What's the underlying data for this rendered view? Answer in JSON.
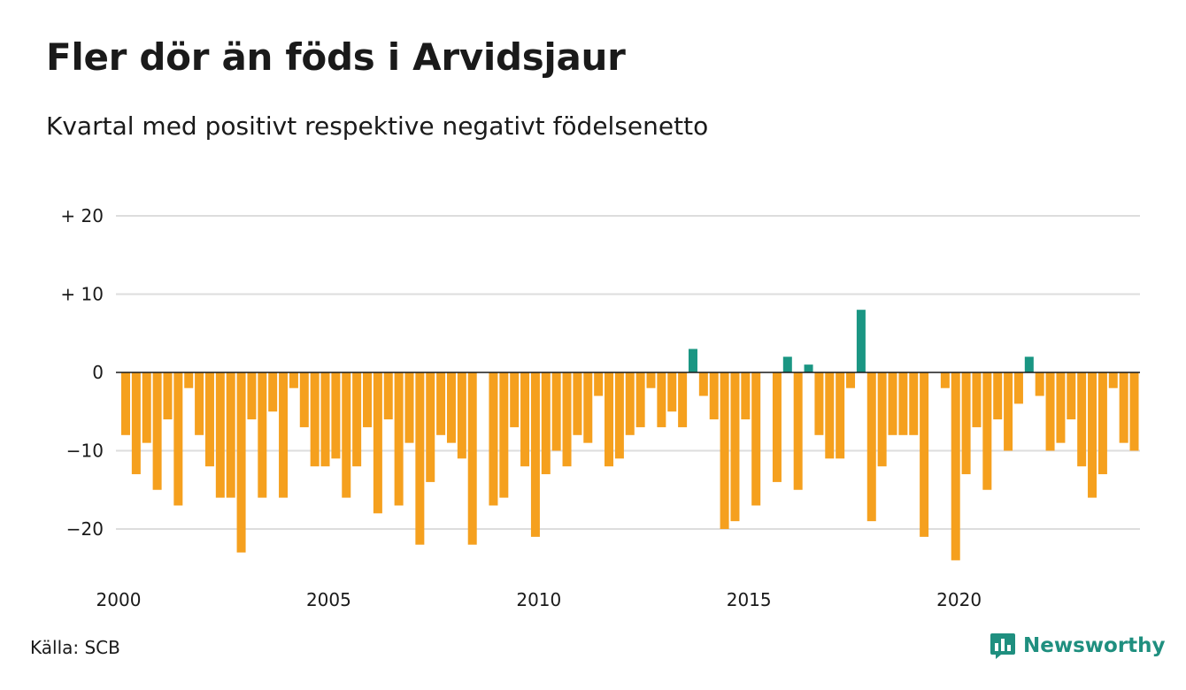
{
  "title": "Fler dör än föds i Arvidsjaur",
  "subtitle": "Kvartal med positivt respektive negativt födelsenetto",
  "source": "Källa: SCB",
  "brand": "Newsworthy",
  "colors": {
    "positive": "#1a9683",
    "negative": "#f5a01e",
    "grid": "#dddddd",
    "baseline": "#1a1a1a",
    "brand": "#1f8f7f"
  },
  "brand_icon": "newsworthy-chart-bubble-icon",
  "chart_data": {
    "type": "bar",
    "title": "Fler dör än föds i Arvidsjaur",
    "subtitle": "Kvartal med positivt respektive negativt födelsenetto",
    "xlabel": "",
    "ylabel": "",
    "x_start": "2000-Q1",
    "x_ticks": [
      "2000",
      "2005",
      "2010",
      "2015",
      "2020"
    ],
    "y_ticks": [
      {
        "value": 20,
        "label": "+ 20"
      },
      {
        "value": 10,
        "label": "+ 10"
      },
      {
        "value": 0,
        "label": "0"
      },
      {
        "value": -10,
        "label": "−10"
      },
      {
        "value": -20,
        "label": "−20"
      }
    ],
    "ylim": [
      -25,
      20
    ],
    "grid": true,
    "values": [
      -8,
      -13,
      -9,
      -15,
      -6,
      -17,
      -2,
      -8,
      -12,
      -16,
      -16,
      -23,
      -6,
      -16,
      -5,
      -16,
      -2,
      -7,
      -12,
      -12,
      -11,
      -16,
      -12,
      -7,
      -18,
      -6,
      -17,
      -9,
      -22,
      -14,
      -8,
      -9,
      -11,
      -22,
      0,
      -17,
      -16,
      -7,
      -12,
      -21,
      -13,
      -10,
      -12,
      -8,
      -9,
      -3,
      -12,
      -11,
      -8,
      -7,
      -2,
      -7,
      -5,
      -7,
      3,
      -3,
      -6,
      -20,
      -19,
      -6,
      -17,
      0,
      -14,
      2,
      -15,
      1,
      -8,
      -11,
      -11,
      -2,
      8,
      -19,
      -12,
      -8,
      -8,
      -8,
      -21,
      0,
      -2,
      -24,
      -13,
      -7,
      -15,
      -6,
      -10,
      -4,
      2,
      -3,
      -10,
      -9,
      -6,
      -12,
      -16,
      -13,
      -2,
      -9,
      -10
    ]
  }
}
